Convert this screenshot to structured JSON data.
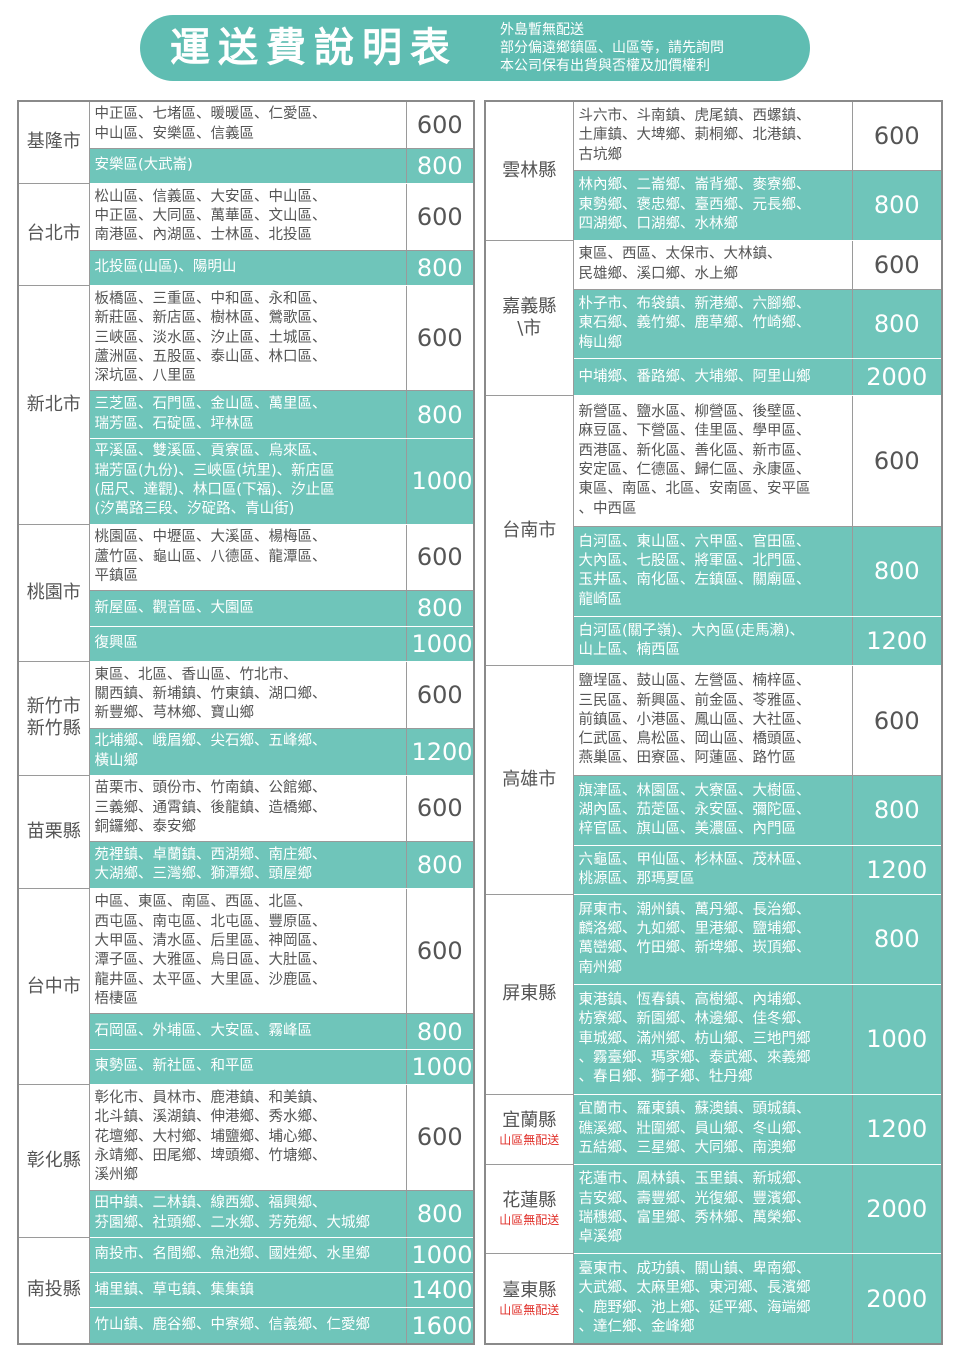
{
  "header": {
    "title": "運送費說明表",
    "notes": [
      "外島暫無配送",
      "部分偏遠鄉鎮區、山區等，請先詢問",
      "本公司保有出貨與否權及加價權利"
    ]
  },
  "left_table": {
    "regions": [
      {
        "name": [
          "基隆市"
        ],
        "rows": [
          {
            "areas": [
              "中正區、七堵區、暖暖區、仁愛區、",
              "中山區、安樂區、信義區"
            ],
            "price": 600,
            "shaded": false
          },
          {
            "areas": [
              "安樂區(大武崙)"
            ],
            "price": 800,
            "shaded": true
          }
        ]
      },
      {
        "name": [
          "台北市"
        ],
        "rows": [
          {
            "areas": [
              "松山區、信義區、大安區、中山區、",
              "中正區、大同區、萬華區、文山區、",
              "南港區、內湖區、士林區、北投區"
            ],
            "price": 600,
            "shaded": false
          },
          {
            "areas": [
              "北投區(山區)、陽明山"
            ],
            "price": 800,
            "shaded": true
          }
        ]
      },
      {
        "name": [
          "新北市"
        ],
        "rows": [
          {
            "areas": [
              "板橋區、三重區、中和區、永和區、",
              "新莊區、新店區、樹林區、鶯歌區、",
              "三峽區、淡水區、汐止區、土城區、",
              "蘆洲區、五股區、泰山區、林口區、",
              "深坑區、八里區"
            ],
            "price": 600,
            "shaded": false
          },
          {
            "areas": [
              "三芝區、石門區、金山區、萬里區、",
              "瑞芳區、石碇區、坪林區"
            ],
            "price": 800,
            "shaded": true
          },
          {
            "areas": [
              "平溪區、雙溪區、貢寮區、烏來區、",
              "瑞芳區(九份)、三峽區(坑里)、新店區",
              "(屈尺、達觀)、林口區(下福)、汐止區",
              "(汐萬路三段、汐碇路、青山街)"
            ],
            "price": 1000,
            "shaded": true
          }
        ]
      },
      {
        "name": [
          "桃園市"
        ],
        "rows": [
          {
            "areas": [
              "桃園區、中壢區、大溪區、楊梅區、",
              "蘆竹區、龜山區、八德區、龍潭區、",
              "平鎮區"
            ],
            "price": 600,
            "shaded": false
          },
          {
            "areas": [
              "新屋區、觀音區、大園區"
            ],
            "price": 800,
            "shaded": true
          },
          {
            "areas": [
              "復興區"
            ],
            "price": 1000,
            "shaded": true
          }
        ]
      },
      {
        "name": [
          "新竹市",
          "新竹縣"
        ],
        "rows": [
          {
            "areas": [
              "東區、北區、香山區、竹北市、",
              "關西鎮、新埔鎮、竹東鎮、湖口鄉、",
              "新豐鄉、芎林鄉、寶山鄉"
            ],
            "price": 600,
            "shaded": false
          },
          {
            "areas": [
              "北埔鄉、峨眉鄉、尖石鄉、五峰鄉、",
              "橫山鄉"
            ],
            "price": 1200,
            "shaded": true
          }
        ]
      },
      {
        "name": [
          "苗栗縣"
        ],
        "rows": [
          {
            "areas": [
              "苗栗市、頭份市、竹南鎮、公館鄉、",
              "三義鄉、通霄鎮、後龍鎮、造橋鄉、",
              "銅鑼鄉、泰安鄉"
            ],
            "price": 600,
            "shaded": false
          },
          {
            "areas": [
              "苑裡鎮、卓蘭鎮、西湖鄉、南庄鄉、",
              "大湖鄉、三灣鄉、獅潭鄉、頭屋鄉"
            ],
            "price": 800,
            "shaded": true
          }
        ]
      },
      {
        "name": [
          "台中市"
        ],
        "rows": [
          {
            "areas": [
              "中區、東區、南區、西區、北區、",
              "西屯區、南屯區、北屯區、豐原區、",
              "大甲區、清水區、后里區、神岡區、",
              "潭子區、大雅區、烏日區、大肚區、",
              "龍井區、太平區、大里區、沙鹿區、",
              "梧棲區"
            ],
            "price": 600,
            "shaded": false
          },
          {
            "areas": [
              "石岡區、外埔區、大安區、霧峰區"
            ],
            "price": 800,
            "shaded": true
          },
          {
            "areas": [
              "東勢區、新社區、和平區"
            ],
            "price": 1000,
            "shaded": true
          }
        ]
      },
      {
        "name": [
          "彰化縣"
        ],
        "rows": [
          {
            "areas": [
              "彰化市、員林市、鹿港鎮、和美鎮、",
              "北斗鎮、溪湖鎮、伸港鄉、秀水鄉、",
              "花壇鄉、大村鄉、埔鹽鄉、埔心鄉、",
              "永靖鄉、田尾鄉、埤頭鄉、竹塘鄉、",
              "溪州鄉"
            ],
            "price": 600,
            "shaded": false
          },
          {
            "areas": [
              "田中鎮、二林鎮、線西鄉、福興鄉、",
              "芬園鄉、社頭鄉、二水鄉、芳苑鄉、大城鄉"
            ],
            "price": 800,
            "shaded": true
          }
        ]
      },
      {
        "name": [
          "南投縣"
        ],
        "rows": [
          {
            "areas": [
              "南投市、名間鄉、魚池鄉、國姓鄉、水里鄉"
            ],
            "price": 1000,
            "shaded": true
          },
          {
            "areas": [
              "埔里鎮、草屯鎮、集集鎮"
            ],
            "price": 1400,
            "shaded": true
          },
          {
            "areas": [
              "竹山鎮、鹿谷鄉、中寮鄉、信義鄉、仁愛鄉"
            ],
            "price": 1600,
            "shaded": true
          }
        ]
      }
    ]
  },
  "right_table": {
    "regions": [
      {
        "name": [
          "雲林縣"
        ],
        "rows": [
          {
            "areas": [
              "斗六市、斗南鎮、虎尾鎮、西螺鎮、",
              "土庫鎮、大埤鄉、莿桐鄉、北港鎮、",
              "古坑鄉"
            ],
            "price": 600,
            "shaded": false
          },
          {
            "areas": [
              "林內鄉、二崙鄉、崙背鄉、麥寮鄉、",
              "東勢鄉、褒忠鄉、臺西鄉、元長鄉、",
              "四湖鄉、口湖鄉、水林鄉"
            ],
            "price": 800,
            "shaded": true
          }
        ]
      },
      {
        "name": [
          "嘉義縣\\市"
        ],
        "rows": [
          {
            "areas": [
              "東區、西區、太保市、大林鎮、",
              "民雄鄉、溪口鄉、水上鄉"
            ],
            "price": 600,
            "shaded": false
          },
          {
            "areas": [
              "朴子市、布袋鎮、新港鄉、六腳鄉、",
              "東石鄉、義竹鄉、鹿草鄉、竹崎鄉、",
              "梅山鄉"
            ],
            "price": 800,
            "shaded": true
          },
          {
            "areas": [
              "中埔鄉、番路鄉、大埔鄉、阿里山鄉"
            ],
            "price": 2000,
            "shaded": true
          }
        ]
      },
      {
        "name": [
          "台南市"
        ],
        "rows": [
          {
            "areas": [
              "新營區、鹽水區、柳營區、後壁區、",
              "麻豆區、下營區、佳里區、學甲區、",
              "西港區、新化區、善化區、新市區、",
              "安定區、仁德區、歸仁區、永康區、",
              "東區、南區、北區、安南區、安平區",
              "、中西區"
            ],
            "price": 600,
            "shaded": false
          },
          {
            "areas": [
              "白河區、東山區、六甲區、官田區、",
              "大內區、七股區、將軍區、北門區、",
              "玉井區、南化區、左鎮區、關廟區、",
              "龍崎區"
            ],
            "price": 800,
            "shaded": true
          },
          {
            "areas": [
              "白河區(關子嶺)、大內區(走馬瀨)、",
              "山上區、楠西區"
            ],
            "price": 1200,
            "shaded": true
          }
        ]
      },
      {
        "name": [
          "高雄市"
        ],
        "rows": [
          {
            "areas": [
              "鹽埕區、鼓山區、左營區、楠梓區、",
              "三民區、新興區、前金區、苓雅區、",
              "前鎮區、小港區、鳳山區、大社區、",
              "仁武區、鳥松區、岡山區、橋頭區、",
              "燕巢區、田寮區、阿蓮區、路竹區"
            ],
            "price": 600,
            "shaded": false
          },
          {
            "areas": [
              "旗津區、林園區、大寮區、大樹區、",
              "湖內區、茄萣區、永安區、彌陀區、",
              "梓官區、旗山區、美濃區、內門區"
            ],
            "price": 800,
            "shaded": true
          },
          {
            "areas": [
              "六龜區、甲仙區、杉林區、茂林區、",
              "桃源區、那瑪夏區"
            ],
            "price": 1200,
            "shaded": true
          }
        ]
      },
      {
        "name": [
          "屏東縣"
        ],
        "rows": [
          {
            "areas": [
              "屏東市、潮州鎮、萬丹鄉、長治鄉、",
              "麟洛鄉、九如鄉、里港鄉、鹽埔鄉、",
              "萬巒鄉、竹田鄉、新埤鄉、崁頂鄉、",
              "南州鄉"
            ],
            "price": 800,
            "shaded": true
          },
          {
            "areas": [
              "東港鎮、恆春鎮、高樹鄉、內埔鄉、",
              "枋寮鄉、新園鄉、林邊鄉、佳冬鄉、",
              "車城鄉、滿州鄉、枋山鄉、三地門鄉",
              "、霧臺鄉、瑪家鄉、泰武鄉、來義鄉",
              "、春日鄉、獅子鄉、牡丹鄉"
            ],
            "price": 1000,
            "shaded": true
          }
        ]
      },
      {
        "name": [
          "宜蘭縣"
        ],
        "note": "山區無配送",
        "rows": [
          {
            "areas": [
              "宜蘭市、羅東鎮、蘇澳鎮、頭城鎮、",
              "礁溪鄉、壯圍鄉、員山鄉、冬山鄉、",
              "五結鄉、三星鄉、大同鄉、南澳鄉"
            ],
            "price": 1200,
            "shaded": true
          }
        ]
      },
      {
        "name": [
          "花蓮縣"
        ],
        "note": "山區無配送",
        "rows": [
          {
            "areas": [
              "花蓮市、鳳林鎮、玉里鎮、新城鄉、",
              "吉安鄉、壽豐鄉、光復鄉、豐濱鄉、",
              "瑞穗鄉、富里鄉、秀林鄉、萬榮鄉、",
              "卓溪鄉"
            ],
            "price": 2000,
            "shaded": true
          }
        ]
      },
      {
        "name": [
          "臺東縣"
        ],
        "note": "山區無配送",
        "rows": [
          {
            "areas": [
              "臺東市、成功鎮、關山鎮、卑南鄉、",
              "大武鄉、太麻里鄉、東河鄉、長濱鄉",
              "、鹿野鄉、池上鄉、延平鄉、海端鄉",
              "、達仁鄉、金峰鄉"
            ],
            "price": 2000,
            "shaded": true
          }
        ]
      }
    ]
  }
}
